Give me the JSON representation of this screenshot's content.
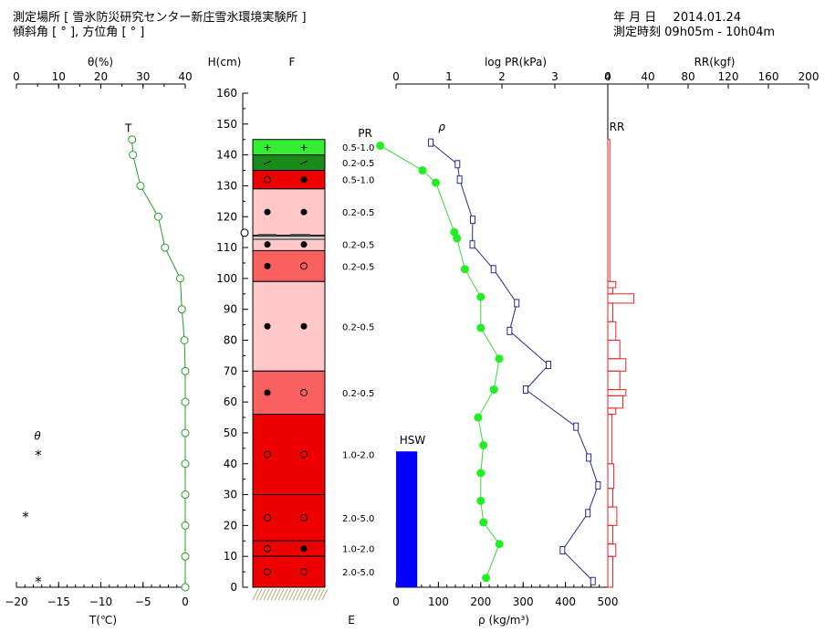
{
  "header": {
    "location_label": "測定場所",
    "location": "[ 雪氷防災研究センター新庄雪氷環境実験所 ]",
    "angle_label": "傾斜角 [ ° ], 方位角 [ ° ]",
    "date_label": "年 月 日",
    "date": "2014.01.24",
    "time_label": "測定時刻",
    "time": "09h05m - 10h04m"
  },
  "chart_data": {
    "type": "snow-pit-profile",
    "height_axis": {
      "label": "H(cm)",
      "range": [
        0,
        160
      ],
      "ticks": [
        0,
        10,
        20,
        30,
        40,
        50,
        60,
        70,
        80,
        90,
        100,
        110,
        120,
        130,
        140,
        150,
        160
      ]
    },
    "column_labels": {
      "grain_type": "F",
      "hardness_mark": "E",
      "temperature_marker": "T",
      "incline_marker": "θ",
      "pr_marker": "PR",
      "density_marker": "ρ",
      "rr_marker": "RR",
      "hsw_marker": "HSW"
    },
    "temperature": {
      "xlabel": "T(℃)",
      "xlim": [
        -20,
        0
      ],
      "ticks": [
        -20,
        -15,
        -10,
        -5,
        0
      ],
      "points": [
        {
          "h": 145,
          "t": -6.3
        },
        {
          "h": 140,
          "t": -6.2
        },
        {
          "h": 130,
          "t": -5.3
        },
        {
          "h": 120,
          "t": -3.2
        },
        {
          "h": 110,
          "t": -2.4
        },
        {
          "h": 100,
          "t": -0.6
        },
        {
          "h": 90,
          "t": -0.4
        },
        {
          "h": 80,
          "t": -0.1
        },
        {
          "h": 70,
          "t": 0
        },
        {
          "h": 60,
          "t": 0
        },
        {
          "h": 50,
          "t": 0
        },
        {
          "h": 40,
          "t": 0
        },
        {
          "h": 30,
          "t": 0
        },
        {
          "h": 20,
          "t": 0
        },
        {
          "h": 10,
          "t": 0
        },
        {
          "h": 0,
          "t": 0
        }
      ]
    },
    "incline": {
      "xlabel": "θ(%)",
      "xlim": [
        0,
        40
      ],
      "ticks": [
        0,
        10,
        20,
        30,
        40
      ],
      "marks": [
        {
          "h": 43,
          "symbol": "*"
        },
        {
          "h": 23,
          "symbol": "*"
        },
        {
          "h": 2,
          "symbol": "*"
        }
      ]
    },
    "layers": [
      {
        "bottom": 140,
        "top": 145,
        "color": "#33ee33",
        "symbol": "+",
        "grain_size": "0.5-1.0"
      },
      {
        "bottom": 135,
        "top": 140,
        "color": "#1a8a1a",
        "symbol": "/",
        "grain_size": "0.2-0.5"
      },
      {
        "bottom": 129,
        "top": 135,
        "color": "#ee0000",
        "symbol": "o●",
        "grain_size": "0.5-1.0"
      },
      {
        "bottom": 114,
        "top": 129,
        "color": "#ffc8c8",
        "symbol": "●●",
        "grain_size": "0.2-0.5"
      },
      {
        "bottom": 113,
        "top": 114,
        "color": "#ffc8c8",
        "symbol": "",
        "grain_size": ""
      },
      {
        "bottom": 109,
        "top": 113,
        "color": "#ffc8c8",
        "symbol": "●●",
        "grain_size": "0.2-0.5"
      },
      {
        "bottom": 99,
        "top": 109,
        "color": "#f86060",
        "symbol": "●o",
        "grain_size": "0.2-0.5"
      },
      {
        "bottom": 70,
        "top": 99,
        "color": "#ffc8c8",
        "symbol": "●●",
        "grain_size": "0.2-0.5"
      },
      {
        "bottom": 56,
        "top": 70,
        "color": "#f86060",
        "symbol": "●o",
        "grain_size": "0.2-0.5"
      },
      {
        "bottom": 30,
        "top": 56,
        "color": "#ee0000",
        "symbol": "oo",
        "grain_size": "1.0-2.0"
      },
      {
        "bottom": 15,
        "top": 30,
        "color": "#ee0000",
        "symbol": "oo",
        "grain_size": "2.0-5.0"
      },
      {
        "bottom": 10,
        "top": 15,
        "color": "#ee0000",
        "symbol": "o●",
        "grain_size": "1.0-2.0"
      },
      {
        "bottom": 0,
        "top": 10,
        "color": "#ee0000",
        "symbol": "oo",
        "grain_size": "2.0-5.0"
      }
    ],
    "ice_mark": {
      "h": 113,
      "symbol": "O"
    },
    "pr": {
      "xlabel": "log PR(kPa)",
      "xlim": [
        0,
        4
      ],
      "ticks": [
        0,
        1,
        2,
        3,
        4
      ],
      "points": [
        {
          "h": 143,
          "v": -0.3
        },
        {
          "h": 135,
          "v": 0.5
        },
        {
          "h": 131,
          "v": 0.75
        },
        {
          "h": 115,
          "v": 1.1
        },
        {
          "h": 113,
          "v": 1.15
        },
        {
          "h": 103,
          "v": 1.3
        },
        {
          "h": 94,
          "v": 1.6
        },
        {
          "h": 84,
          "v": 1.6
        },
        {
          "h": 74,
          "v": 1.95
        },
        {
          "h": 64,
          "v": 1.85
        },
        {
          "h": 55,
          "v": 1.55
        },
        {
          "h": 46,
          "v": 1.65
        },
        {
          "h": 37,
          "v": 1.6
        },
        {
          "h": 28,
          "v": 1.6
        },
        {
          "h": 21,
          "v": 1.65
        },
        {
          "h": 14,
          "v": 1.95
        },
        {
          "h": 3,
          "v": 1.7
        }
      ]
    },
    "density": {
      "xlabel": "ρ (kg/m³)",
      "xlim": [
        0,
        500
      ],
      "ticks": [
        0,
        100,
        200,
        300,
        400,
        500
      ],
      "points": [
        {
          "h": 144,
          "v": 82
        },
        {
          "h": 137,
          "v": 145
        },
        {
          "h": 132,
          "v": 150
        },
        {
          "h": 119,
          "v": 181
        },
        {
          "h": 111,
          "v": 180
        },
        {
          "h": 103,
          "v": 230
        },
        {
          "h": 92,
          "v": 285
        },
        {
          "h": 83,
          "v": 268
        },
        {
          "h": 72,
          "v": 360
        },
        {
          "h": 64,
          "v": 306
        },
        {
          "h": 52,
          "v": 425
        },
        {
          "h": 42,
          "v": 455
        },
        {
          "h": 33,
          "v": 477
        },
        {
          "h": 24,
          "v": 453
        },
        {
          "h": 12,
          "v": 393
        },
        {
          "h": 2,
          "v": 465
        }
      ]
    },
    "hsw": {
      "v": 50,
      "h_top": 44,
      "color": "#0000ff"
    },
    "rr": {
      "xlabel": "RR(kgf)",
      "xlim": [
        0,
        200
      ],
      "ticks": [
        0,
        40,
        80,
        120,
        160,
        200
      ],
      "steps": [
        {
          "bottom": 0,
          "top": 10,
          "v": 5
        },
        {
          "bottom": 10,
          "top": 14,
          "v": 8
        },
        {
          "bottom": 14,
          "top": 20,
          "v": 5
        },
        {
          "bottom": 20,
          "top": 26,
          "v": 9
        },
        {
          "bottom": 26,
          "top": 32,
          "v": 5
        },
        {
          "bottom": 32,
          "top": 40,
          "v": 6
        },
        {
          "bottom": 40,
          "top": 56,
          "v": 4
        },
        {
          "bottom": 56,
          "top": 58,
          "v": 8
        },
        {
          "bottom": 58,
          "top": 62,
          "v": 15
        },
        {
          "bottom": 62,
          "top": 64,
          "v": 18
        },
        {
          "bottom": 64,
          "top": 70,
          "v": 12
        },
        {
          "bottom": 70,
          "top": 74,
          "v": 18
        },
        {
          "bottom": 74,
          "top": 80,
          "v": 12
        },
        {
          "bottom": 80,
          "top": 86,
          "v": 8
        },
        {
          "bottom": 86,
          "top": 92,
          "v": 5
        },
        {
          "bottom": 92,
          "top": 95,
          "v": 26
        },
        {
          "bottom": 95,
          "top": 97,
          "v": 5
        },
        {
          "bottom": 97,
          "top": 99,
          "v": 8
        },
        {
          "bottom": 99,
          "top": 145,
          "v": 2
        }
      ]
    }
  }
}
